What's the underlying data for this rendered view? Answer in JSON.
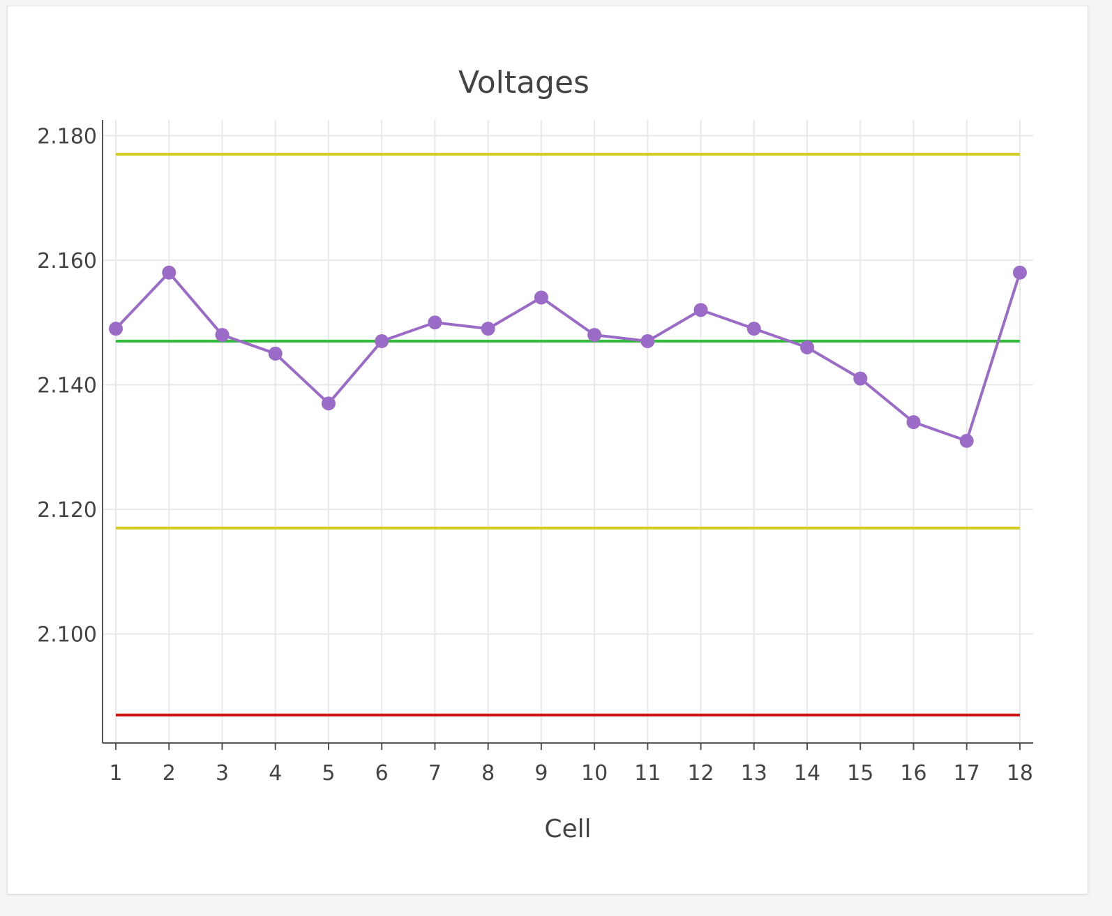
{
  "chart_data": {
    "type": "line",
    "title": "Voltages",
    "xlabel": "Cell",
    "ylabel": "",
    "x": [
      1,
      2,
      3,
      4,
      5,
      6,
      7,
      8,
      9,
      10,
      11,
      12,
      13,
      14,
      15,
      16,
      17,
      18
    ],
    "x_tick_labels": [
      "1",
      "2",
      "3",
      "4",
      "5",
      "6",
      "7",
      "8",
      "9",
      "10",
      "11",
      "12",
      "13",
      "14",
      "15",
      "16",
      "17",
      "18"
    ],
    "y_tick_labels": [
      "2.100",
      "2.120",
      "2.140",
      "2.160",
      "2.180"
    ],
    "y_ticks": [
      2.1,
      2.12,
      2.14,
      2.16,
      2.18
    ],
    "xlim": [
      0.75,
      18.25
    ],
    "ylim": [
      2.0825,
      2.1825
    ],
    "grid": true,
    "series": [
      {
        "color": "#9b6bc8",
        "values": [
          2.149,
          2.158,
          2.148,
          2.145,
          2.137,
          2.147,
          2.15,
          2.149,
          2.154,
          2.148,
          2.147,
          2.152,
          2.149,
          2.146,
          2.141,
          2.134,
          2.131,
          2.158
        ]
      }
    ],
    "reference_lines": [
      {
        "y": 2.177,
        "color": "#d4cc1a"
      },
      {
        "y": 2.147,
        "color": "#33bb3a"
      },
      {
        "y": 2.117,
        "color": "#d4cc1a"
      },
      {
        "y": 2.087,
        "color": "#cc1111"
      }
    ]
  }
}
